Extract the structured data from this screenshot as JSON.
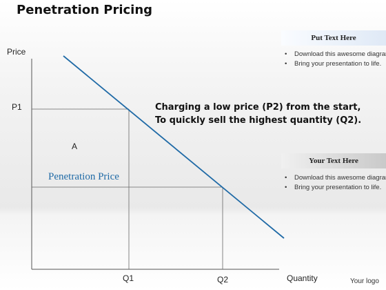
{
  "title": "Penetration Pricing",
  "axes": {
    "y_label": "Price",
    "x_label": "Quantity",
    "y_ticks": [
      "P1"
    ],
    "x_ticks": [
      "Q1",
      "Q2"
    ]
  },
  "region_label": "A",
  "penetration_label": "Penetration Price",
  "callout": {
    "line1": "Charging a low price (P2) from the start,",
    "line2": "To quickly sell the highest quantity (Q2)."
  },
  "panels": [
    {
      "heading": "Put Text Here",
      "bullets": [
        "Download this awesome diagram.",
        "Bring your presentation to life."
      ]
    },
    {
      "heading": "Your Text Here",
      "bullets": [
        "Download this awesome diagram.",
        "Bring your presentation to life."
      ]
    }
  ],
  "logo": "Your logo",
  "colors": {
    "demand_line": "#1f6aa6",
    "penetration_text": "#1f6aa6",
    "panel_head_1": "#dfe9f6",
    "panel_head_2": "#c9c9c9"
  }
}
